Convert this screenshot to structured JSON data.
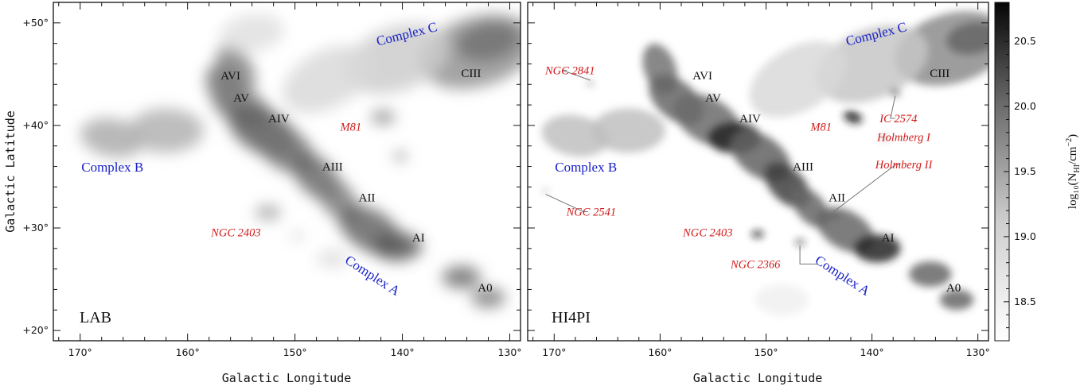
{
  "chart_data": [
    {
      "type": "heatmap",
      "panel_label": "LAB",
      "xlabel": "Galactic Longitude",
      "ylabel": "Galactic Latitude",
      "xlim": [
        172.5,
        129
      ],
      "ylim": [
        19,
        52
      ],
      "xticks": [
        {
          "value": 170,
          "label": "170°"
        },
        {
          "value": 160,
          "label": "160°"
        },
        {
          "value": 150,
          "label": "150°"
        },
        {
          "value": 140,
          "label": "140°"
        },
        {
          "value": 130,
          "label": "130°"
        }
      ],
      "yticks": [
        {
          "value": 50,
          "label": "+50°"
        },
        {
          "value": 40,
          "label": "+40°"
        },
        {
          "value": 30,
          "label": "+30°"
        },
        {
          "value": 20,
          "label": "+20°"
        }
      ],
      "features": [
        {
          "text": "Complex C",
          "l": 139.5,
          "b": 48.5,
          "style": "blue",
          "rotate": -14
        },
        {
          "text": "Complex B",
          "l": 167,
          "b": 35.5,
          "style": "blue",
          "rotate": 0
        },
        {
          "text": "Complex A",
          "l": 143,
          "b": 25,
          "style": "blue",
          "rotate": 33
        },
        {
          "text": "AVI",
          "l": 156,
          "b": 44.5,
          "style": "black",
          "rotate": 0
        },
        {
          "text": "AV",
          "l": 155,
          "b": 42.3,
          "style": "black",
          "rotate": 0
        },
        {
          "text": "AIV",
          "l": 151.5,
          "b": 40.3,
          "style": "black",
          "rotate": 0
        },
        {
          "text": "AIII",
          "l": 146.5,
          "b": 35.6,
          "style": "black",
          "rotate": 0
        },
        {
          "text": "AII",
          "l": 143.3,
          "b": 32.6,
          "style": "black",
          "rotate": 0
        },
        {
          "text": "AI",
          "l": 138.5,
          "b": 28.7,
          "style": "black",
          "rotate": 0
        },
        {
          "text": "A0",
          "l": 132.3,
          "b": 23.8,
          "style": "black",
          "rotate": 0
        },
        {
          "text": "CIII",
          "l": 133.6,
          "b": 44.7,
          "style": "black",
          "rotate": 0
        },
        {
          "text": "M81",
          "l": 144.8,
          "b": 39.5,
          "style": "red",
          "rotate": 0
        },
        {
          "text": "NGC 2403",
          "l": 155.5,
          "b": 29.2,
          "style": "red",
          "rotate": 0
        }
      ],
      "emission": [
        {
          "l": 133,
          "b": 47.2,
          "r": 5.5,
          "s": 0.42,
          "rot": -16
        },
        {
          "l": 132,
          "b": 48.2,
          "r": 3,
          "s": 0.55,
          "rot": -12
        },
        {
          "l": 140.5,
          "b": 46.5,
          "r": 5,
          "s": 0.2,
          "rot": -20
        },
        {
          "l": 147,
          "b": 44.5,
          "r": 4.5,
          "s": 0.15,
          "rot": -28
        },
        {
          "l": 155.5,
          "b": 45.5,
          "r": 2.5,
          "s": 0.5,
          "rot": 60
        },
        {
          "l": 156.5,
          "b": 43.5,
          "r": 2.5,
          "s": 0.55,
          "rot": 60
        },
        {
          "l": 155,
          "b": 41.8,
          "r": 3,
          "s": 0.5,
          "rot": 30
        },
        {
          "l": 153,
          "b": 39.5,
          "r": 3.5,
          "s": 0.62,
          "rot": 30
        },
        {
          "l": 151,
          "b": 37.8,
          "r": 3.2,
          "s": 0.55,
          "rot": 35
        },
        {
          "l": 148,
          "b": 35,
          "r": 2.8,
          "s": 0.58,
          "rot": 45
        },
        {
          "l": 146,
          "b": 32.8,
          "r": 2.5,
          "s": 0.5,
          "rot": 50
        },
        {
          "l": 143,
          "b": 29.8,
          "r": 3.2,
          "s": 0.6,
          "rot": 30
        },
        {
          "l": 140.5,
          "b": 28.2,
          "r": 2.3,
          "s": 0.65,
          "rot": 0
        },
        {
          "l": 134.5,
          "b": 25.2,
          "r": 1.8,
          "s": 0.55,
          "rot": 0
        },
        {
          "l": 132,
          "b": 23.2,
          "r": 1.6,
          "s": 0.5,
          "rot": 0
        },
        {
          "l": 167,
          "b": 38.8,
          "r": 3,
          "s": 0.32,
          "rot": 10
        },
        {
          "l": 162,
          "b": 39.5,
          "r": 3.5,
          "s": 0.3,
          "rot": 0
        },
        {
          "l": 154,
          "b": 49,
          "r": 3,
          "s": 0.12,
          "rot": -10
        },
        {
          "l": 141.8,
          "b": 40.8,
          "r": 1.1,
          "s": 0.45,
          "rot": 0
        },
        {
          "l": 140.2,
          "b": 37,
          "r": 0.6,
          "s": 0.55,
          "rot": 0
        },
        {
          "l": 149.8,
          "b": 29.2,
          "r": 0.5,
          "s": 0.3,
          "rot": 0
        },
        {
          "l": 152.5,
          "b": 31.5,
          "r": 1.2,
          "s": 0.35,
          "rot": 0
        },
        {
          "l": 146.5,
          "b": 27,
          "r": 1.5,
          "s": 0.12,
          "rot": 0
        }
      ]
    },
    {
      "type": "heatmap",
      "panel_label": "HI4PI",
      "xlabel": "Galactic Longitude",
      "ylabel": "",
      "xlim": [
        172.5,
        129
      ],
      "ylim": [
        19,
        52
      ],
      "xticks": [
        {
          "value": 170,
          "label": "170°"
        },
        {
          "value": 160,
          "label": "160°"
        },
        {
          "value": 150,
          "label": "150°"
        },
        {
          "value": 140,
          "label": "140°"
        },
        {
          "value": 130,
          "label": "130°"
        }
      ],
      "yticks": [
        {
          "value": 50,
          "label": ""
        },
        {
          "value": 40,
          "label": ""
        },
        {
          "value": 30,
          "label": ""
        },
        {
          "value": 20,
          "label": ""
        }
      ],
      "features": [
        {
          "text": "Complex C",
          "l": 139.5,
          "b": 48.5,
          "style": "blue",
          "rotate": -14
        },
        {
          "text": "Complex B",
          "l": 167,
          "b": 35.5,
          "style": "blue",
          "rotate": 0
        },
        {
          "text": "Complex A",
          "l": 143,
          "b": 25,
          "style": "blue",
          "rotate": 33
        },
        {
          "text": "AVI",
          "l": 156,
          "b": 44.5,
          "style": "black",
          "rotate": 0
        },
        {
          "text": "AV",
          "l": 155,
          "b": 42.3,
          "style": "black",
          "rotate": 0
        },
        {
          "text": "AIV",
          "l": 151.5,
          "b": 40.3,
          "style": "black",
          "rotate": 0
        },
        {
          "text": "AIII",
          "l": 146.5,
          "b": 35.6,
          "style": "black",
          "rotate": 0
        },
        {
          "text": "AII",
          "l": 143.3,
          "b": 32.6,
          "style": "black",
          "rotate": 0
        },
        {
          "text": "AI",
          "l": 138.5,
          "b": 28.7,
          "style": "black",
          "rotate": 0
        },
        {
          "text": "A0",
          "l": 132.3,
          "b": 23.8,
          "style": "black",
          "rotate": 0
        },
        {
          "text": "CIII",
          "l": 133.6,
          "b": 44.7,
          "style": "black",
          "rotate": 0
        },
        {
          "text": "M81",
          "l": 144.8,
          "b": 39.5,
          "style": "red",
          "rotate": 0
        },
        {
          "text": "NGC 2403",
          "l": 155.5,
          "b": 29.2,
          "style": "red",
          "rotate": 0
        },
        {
          "text": "NGC 2841",
          "l": 168.5,
          "b": 45,
          "style": "red",
          "rotate": 0
        },
        {
          "text": "IC 2574",
          "l": 137.5,
          "b": 40.3,
          "style": "red",
          "rotate": 0
        },
        {
          "text": "Holmberg I",
          "l": 137,
          "b": 38.5,
          "style": "red",
          "rotate": 0
        },
        {
          "text": "Holmberg II",
          "l": 137,
          "b": 35.8,
          "style": "red",
          "rotate": 0
        },
        {
          "text": "NGC 2541",
          "l": 166.5,
          "b": 31.2,
          "style": "red",
          "rotate": 0
        },
        {
          "text": "NGC 2366",
          "l": 151,
          "b": 26.1,
          "style": "red",
          "rotate": 0
        }
      ],
      "emission": [
        {
          "l": 132.5,
          "b": 47.5,
          "r": 5.5,
          "s": 0.45,
          "rot": -16
        },
        {
          "l": 130.5,
          "b": 48.5,
          "r": 2.5,
          "s": 0.6,
          "rot": -10
        },
        {
          "l": 140,
          "b": 46,
          "r": 5.5,
          "s": 0.22,
          "rot": -22
        },
        {
          "l": 147,
          "b": 44.5,
          "r": 5,
          "s": 0.15,
          "rot": -30
        },
        {
          "l": 160,
          "b": 45.5,
          "r": 2.5,
          "s": 0.55,
          "rot": 70
        },
        {
          "l": 158.5,
          "b": 42.5,
          "r": 3,
          "s": 0.6,
          "rot": 40
        },
        {
          "l": 155.5,
          "b": 40.5,
          "r": 3.5,
          "s": 0.58,
          "rot": 30
        },
        {
          "l": 153,
          "b": 38.8,
          "r": 2.5,
          "s": 0.85,
          "rot": 0
        },
        {
          "l": 150.5,
          "b": 37,
          "r": 3.2,
          "s": 0.62,
          "rot": 35
        },
        {
          "l": 148,
          "b": 34.2,
          "r": 2.6,
          "s": 0.75,
          "rot": 45
        },
        {
          "l": 145.8,
          "b": 32,
          "r": 2.2,
          "s": 0.6,
          "rot": 50
        },
        {
          "l": 142.5,
          "b": 29.8,
          "r": 3,
          "s": 0.6,
          "rot": 30
        },
        {
          "l": 139.5,
          "b": 28,
          "r": 2.2,
          "s": 0.85,
          "rot": 0
        },
        {
          "l": 134.5,
          "b": 25.5,
          "r": 2,
          "s": 0.6,
          "rot": 0
        },
        {
          "l": 132,
          "b": 23,
          "r": 1.6,
          "s": 0.6,
          "rot": 0
        },
        {
          "l": 168,
          "b": 39,
          "r": 3.2,
          "s": 0.25,
          "rot": 10
        },
        {
          "l": 163,
          "b": 39.5,
          "r": 3.5,
          "s": 0.25,
          "rot": 0
        },
        {
          "l": 141.8,
          "b": 40.8,
          "r": 0.9,
          "s": 0.9,
          "rot": 20
        },
        {
          "l": 138.8,
          "b": 38.8,
          "r": 0.3,
          "s": 0.5,
          "rot": 0
        },
        {
          "l": 137.8,
          "b": 43.2,
          "r": 0.45,
          "s": 0.9,
          "rot": 0
        },
        {
          "l": 166.6,
          "b": 44.1,
          "r": 0.3,
          "s": 0.6,
          "rot": 0
        },
        {
          "l": 150.8,
          "b": 29.4,
          "r": 0.55,
          "s": 0.9,
          "rot": 0
        },
        {
          "l": 146.8,
          "b": 28.6,
          "r": 0.4,
          "s": 0.85,
          "rot": 0
        },
        {
          "l": 143.5,
          "b": 31.2,
          "r": 0.4,
          "s": 0.7,
          "rot": 0
        },
        {
          "l": 170.8,
          "b": 33.6,
          "r": 0.25,
          "s": 0.5,
          "rot": 0
        },
        {
          "l": 148.5,
          "b": 23,
          "r": 2.5,
          "s": 0.06,
          "rot": 0
        }
      ]
    }
  ],
  "colorbar": {
    "label": "log₁₀(N_HI/cm⁻²)",
    "label_text": "log₁₀(N",
    "label_sub": "HI",
    "label_tail": "/cm",
    "label_sup": "−2",
    "label_close": ")",
    "min": 18.2,
    "max": 20.8,
    "scale": "grayscale",
    "ticks": [
      {
        "value": 20.5,
        "label": "20.5"
      },
      {
        "value": 20.0,
        "label": "20.0"
      },
      {
        "value": 19.5,
        "label": "19.5"
      },
      {
        "value": 19.0,
        "label": "19.0"
      },
      {
        "value": 18.5,
        "label": "18.5"
      }
    ]
  }
}
